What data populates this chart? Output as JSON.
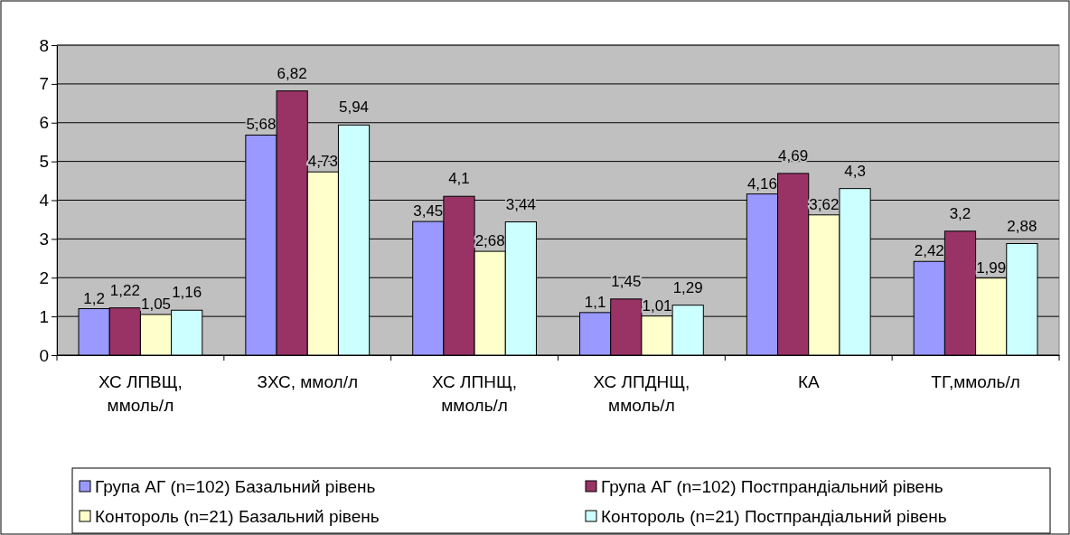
{
  "chart_data": {
    "type": "bar",
    "categories": [
      "ХС ЛПВЩ, ммоль/л",
      "ЗХС, ммол/л",
      "ХС ЛПНЩ, ммоль/л",
      "ХС ЛПДНЩ, ммоль/л",
      "КА",
      "ТГ,ммоль/л"
    ],
    "series": [
      {
        "name": "Група АГ (n=102) Базальний рівень",
        "color": "#9999ff",
        "values": [
          1.2,
          5.68,
          3.45,
          1.1,
          4.16,
          2.42
        ],
        "value_labels": [
          "1,2",
          "5,68",
          "3,45",
          "1,1",
          "4,16",
          "2,42"
        ]
      },
      {
        "name": "Група АГ (n=102) Постпрандіальний рівень",
        "color": "#993366",
        "values": [
          1.22,
          6.82,
          4.1,
          1.45,
          4.69,
          3.2
        ],
        "value_labels": [
          "1,22",
          "6,82",
          "4,1",
          "1,45",
          "4,69",
          "3,2"
        ]
      },
      {
        "name": "Контороль (n=21) Базальний рівень",
        "color": "#ffffcc",
        "values": [
          1.05,
          4.73,
          2.68,
          1.01,
          3.62,
          1.99
        ],
        "value_labels": [
          "1,05",
          "4,73",
          "2,68",
          "1,01",
          "3,62",
          "1,99"
        ]
      },
      {
        "name": "Контороль (n=21) Постпрандіальний рівень",
        "color": "#ccffff",
        "values": [
          1.16,
          5.94,
          3.44,
          1.29,
          4.3,
          2.88
        ],
        "value_labels": [
          "1,16",
          "5,94",
          "3,44",
          "1,29",
          "4,3",
          "2,88"
        ]
      }
    ],
    "ylim": [
      0,
      8
    ],
    "yticks": [
      0,
      1,
      2,
      3,
      4,
      5,
      6,
      7,
      8
    ],
    "grid": "y",
    "legend": "bottom"
  }
}
